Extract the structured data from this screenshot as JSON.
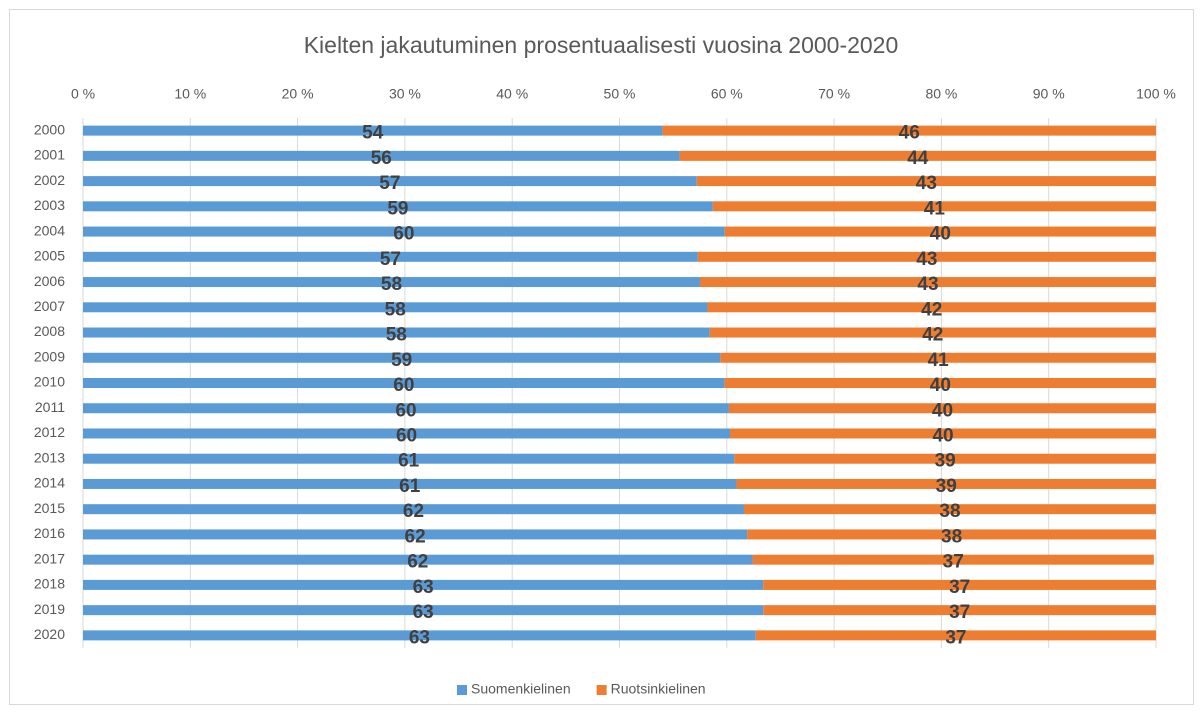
{
  "chart_data": {
    "type": "bar",
    "orientation": "horizontal",
    "stacked": true,
    "title": "Kielten jakautuminen prosentuaalisesti vuosina 2000-2020",
    "categories": [
      "2000",
      "2001",
      "2002",
      "2003",
      "2004",
      "2005",
      "2006",
      "2007",
      "2008",
      "2009",
      "2010",
      "2011",
      "2012",
      "2013",
      "2014",
      "2015",
      "2016",
      "2017",
      "2018",
      "2019",
      "2020"
    ],
    "series": [
      {
        "name": "Suomenkielinen",
        "color": "#5b9bd5",
        "values": [
          54.0,
          55.6,
          57.2,
          58.7,
          59.8,
          57.3,
          57.5,
          58.2,
          58.4,
          59.4,
          59.8,
          60.2,
          60.3,
          60.7,
          60.9,
          61.6,
          61.9,
          62.4,
          63.4,
          63.4,
          62.7
        ],
        "value_labels": [
          "54",
          "56",
          "57",
          "59",
          "60",
          "57",
          "58",
          "58",
          "58",
          "59",
          "60",
          "60",
          "60",
          "61",
          "61",
          "62",
          "62",
          "62",
          "63",
          "63",
          "63"
        ]
      },
      {
        "name": "Ruotsinkielinen",
        "color": "#ed7d31",
        "values": [
          46.0,
          44.4,
          42.8,
          41.3,
          40.2,
          42.7,
          42.5,
          41.8,
          41.6,
          40.6,
          40.2,
          39.8,
          39.7,
          39.3,
          39.1,
          38.4,
          38.1,
          37.4,
          36.6,
          36.6,
          37.3
        ],
        "value_labels": [
          "46",
          "44",
          "43",
          "41",
          "40",
          "43",
          "43",
          "42",
          "42",
          "41",
          "40",
          "40",
          "40",
          "39",
          "39",
          "38",
          "38",
          "37",
          "37",
          "37",
          "37"
        ]
      }
    ],
    "xlim": [
      0,
      100
    ],
    "xticks": [
      {
        "value": 0,
        "label": "0 %"
      },
      {
        "value": 10,
        "label": "10 %"
      },
      {
        "value": 20,
        "label": "20 %"
      },
      {
        "value": 30,
        "label": "30 %"
      },
      {
        "value": 40,
        "label": "40 %"
      },
      {
        "value": 50,
        "label": "50 %"
      },
      {
        "value": 60,
        "label": "60 %"
      },
      {
        "value": 70,
        "label": "70 %"
      },
      {
        "value": 80,
        "label": "80 %"
      },
      {
        "value": 90,
        "label": "90 %"
      },
      {
        "value": 100,
        "label": "100 %"
      }
    ],
    "grid": true,
    "legend": "bottom"
  }
}
